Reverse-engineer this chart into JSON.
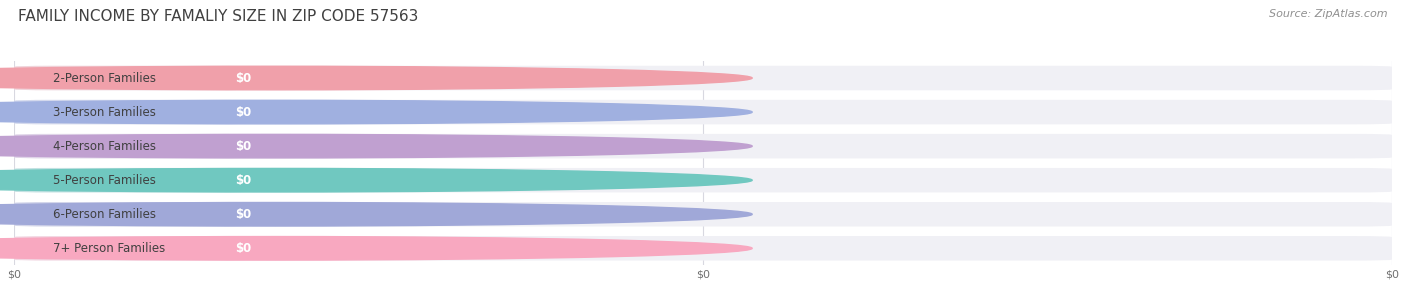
{
  "title": "FAMILY INCOME BY FAMALIY SIZE IN ZIP CODE 57563",
  "source": "Source: ZipAtlas.com",
  "categories": [
    "2-Person Families",
    "3-Person Families",
    "4-Person Families",
    "5-Person Families",
    "6-Person Families",
    "7+ Person Families"
  ],
  "values": [
    0,
    0,
    0,
    0,
    0,
    0
  ],
  "bar_colors": [
    "#f0a0aa",
    "#a0b0e0",
    "#c0a0d0",
    "#70c8c0",
    "#a0a8d8",
    "#f8a8c0"
  ],
  "bg_bar_color": "#f0f0f5",
  "row_bg_colors": [
    "#f8f8f8",
    "#ffffff"
  ],
  "label_color": "#404040",
  "value_label_color": "#ffffff",
  "title_color": "#404040",
  "source_color": "#909090",
  "background_color": "#ffffff",
  "title_fontsize": 11,
  "label_fontsize": 8.5,
  "value_fontsize": 8.5,
  "source_fontsize": 8,
  "xtick_labels": [
    "$0",
    "$0",
    "$0"
  ],
  "xtick_positions": [
    0.0,
    0.5,
    1.0
  ]
}
